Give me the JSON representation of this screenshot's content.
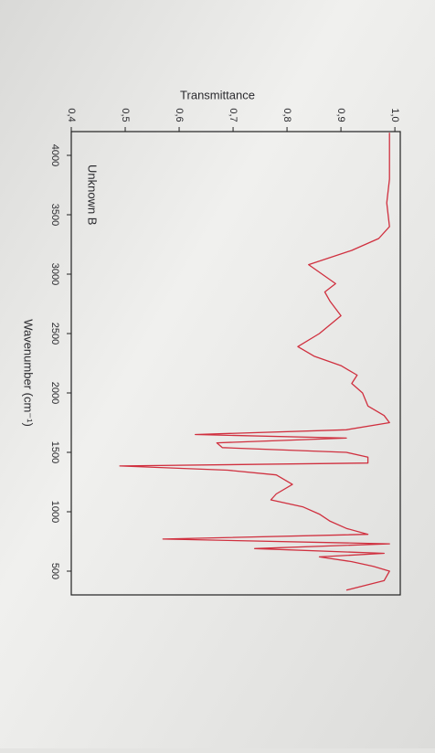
{
  "chart_data": {
    "type": "line",
    "xlabel": "Wavenumber (cm⁻¹)",
    "ylabel": "Transmittance",
    "annotation": "Unknown B",
    "x": [
      4190,
      4000,
      3800,
      3600,
      3400,
      3300,
      3200,
      3080,
      2920,
      2850,
      2770,
      2650,
      2500,
      2390,
      2310,
      2230,
      2150,
      2080,
      2000,
      1890,
      1810,
      1750,
      1690,
      1650,
      1620,
      1580,
      1540,
      1500,
      1460,
      1410,
      1385,
      1350,
      1310,
      1230,
      1150,
      1100,
      1040,
      980,
      920,
      860,
      810,
      770,
      730,
      690,
      650,
      620,
      580,
      540,
      500,
      420,
      340
    ],
    "values": [
      0.99,
      0.99,
      0.99,
      0.985,
      0.99,
      0.97,
      0.92,
      0.84,
      0.89,
      0.87,
      0.88,
      0.9,
      0.86,
      0.82,
      0.85,
      0.9,
      0.93,
      0.92,
      0.94,
      0.95,
      0.98,
      0.99,
      0.91,
      0.63,
      0.91,
      0.67,
      0.68,
      0.91,
      0.95,
      0.95,
      0.49,
      0.69,
      0.78,
      0.81,
      0.78,
      0.77,
      0.83,
      0.86,
      0.88,
      0.91,
      0.95,
      0.57,
      0.99,
      0.74,
      0.98,
      0.86,
      0.92,
      0.96,
      0.99,
      0.98,
      0.91
    ],
    "color": "#d0303f",
    "xlim": [
      4200,
      300
    ],
    "xticks": [
      4000,
      3500,
      3000,
      2500,
      2000,
      1500,
      1000,
      500
    ],
    "ylim": [
      0.4,
      1.01
    ],
    "yticks": [
      {
        "value": 0.4,
        "label": "0,4"
      },
      {
        "value": 0.5,
        "label": "0,5"
      },
      {
        "value": 0.6,
        "label": "0,6"
      },
      {
        "value": 0.7,
        "label": "0,7"
      },
      {
        "value": 0.8,
        "label": "0,8"
      },
      {
        "value": 0.9,
        "label": "0,9"
      },
      {
        "value": 1.0,
        "label": "1,0"
      }
    ]
  }
}
